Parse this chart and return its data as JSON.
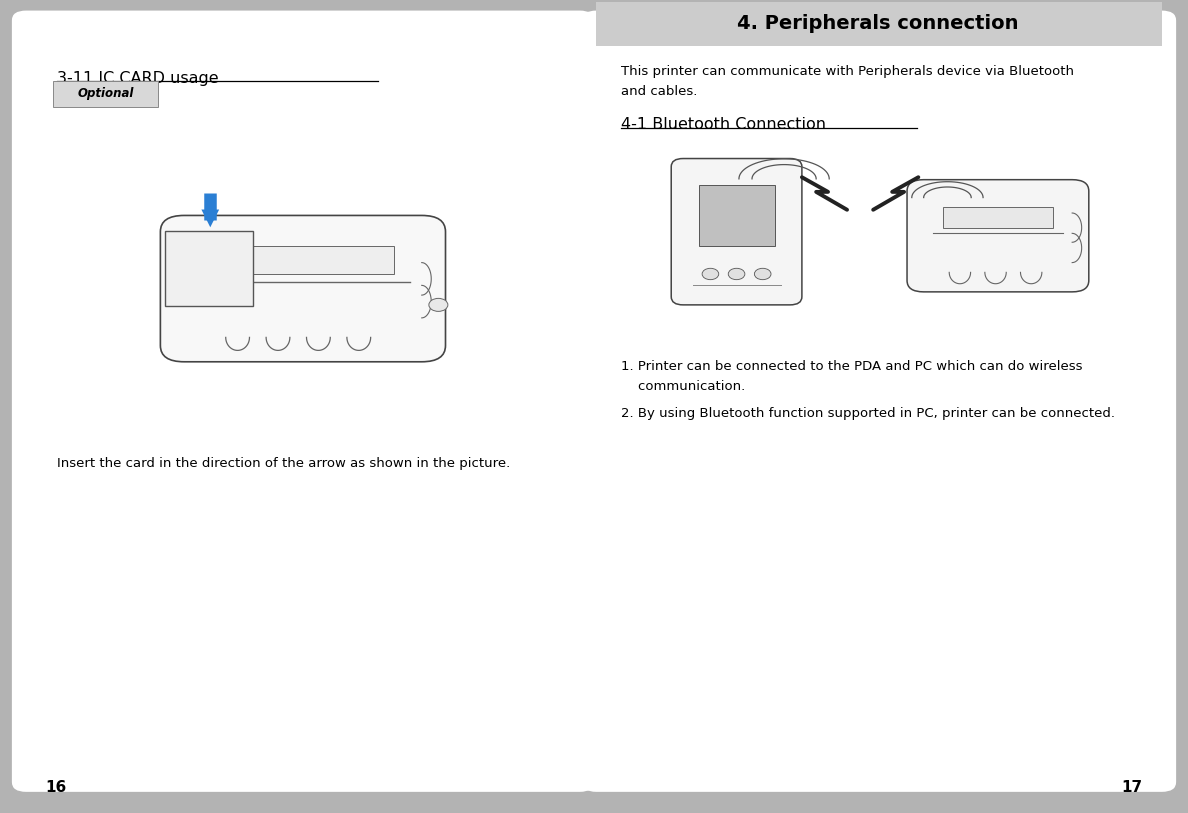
{
  "bg_color": "#b3b3b3",
  "page_bg": "#ffffff",
  "fig_width": 11.88,
  "fig_height": 8.13,
  "page_number_left": "16",
  "page_number_right": "17",
  "left_page": {
    "title": "3-11 IC CARD usage",
    "optional_label": "Optional",
    "body_text": "Insert the card in the direction of the arrow as shown in the picture."
  },
  "right_page": {
    "header": "4. Peripherals connection",
    "intro_line1": "This printer can communicate with Peripherals device via Bluetooth",
    "intro_line2": "and cables.",
    "section_title": "4-1 Bluetooth Connection",
    "bullet1_line1": "1. Printer can be connected to the PDA and PC which can do wireless",
    "bullet1_line2": "    communication.",
    "bullet2": "2. By using Bluetooth function supported in PC, printer can be connected."
  },
  "arrow_color": "#2b7fd4"
}
